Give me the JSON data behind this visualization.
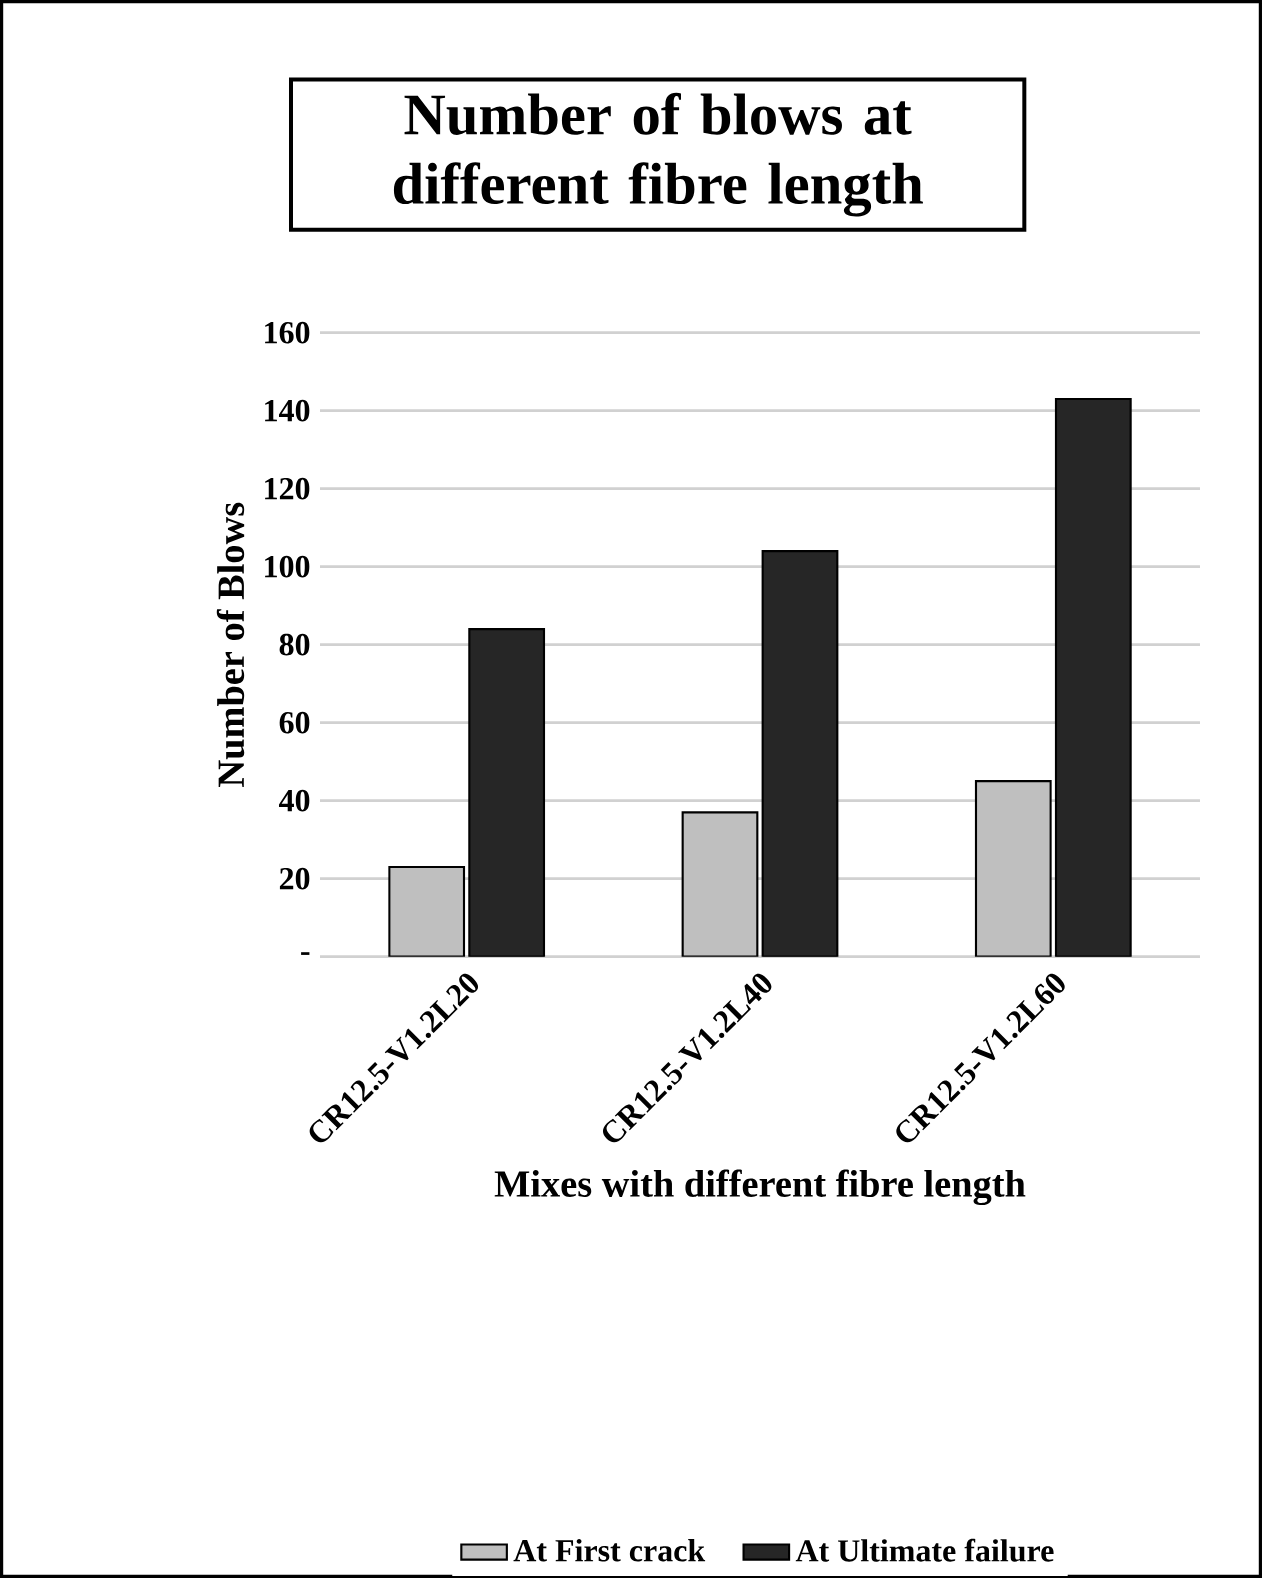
{
  "chart_data": {
    "type": "bar",
    "title": "Number of blows at different fibre length",
    "xlabel": "Mixes with different fibre length",
    "ylabel": "Number of Blows",
    "categories": [
      "CR12.5-V1.2L20",
      "CR12.5-V1.2L40",
      "CR12.5-V1.2L60"
    ],
    "series": [
      {
        "name": "At First crack",
        "color": "#bfbfbf",
        "values": [
          23,
          37,
          45
        ]
      },
      {
        "name": "At Ultimate failure",
        "color": "#262626",
        "values": [
          84,
          104,
          143
        ]
      }
    ],
    "ylim": [
      0,
      160
    ],
    "yticks": [
      {
        "value": 0,
        "label": "-"
      },
      20,
      40,
      60,
      80,
      100,
      120,
      140,
      160
    ],
    "grid": "y",
    "legend": "bottom"
  }
}
